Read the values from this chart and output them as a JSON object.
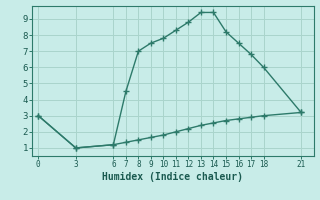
{
  "xlabel": "Humidex (Indice chaleur)",
  "bg_color": "#c8ece8",
  "line_color": "#2d7a6a",
  "grid_color": "#aad4cc",
  "upper_x": [
    0,
    3,
    6,
    7,
    8,
    9,
    10,
    11,
    12,
    13,
    14,
    15,
    16,
    17,
    18,
    21
  ],
  "upper_y": [
    3.0,
    1.0,
    1.2,
    4.5,
    7.0,
    7.5,
    7.8,
    8.3,
    8.8,
    9.4,
    9.4,
    8.2,
    7.5,
    6.8,
    6.0,
    3.2
  ],
  "lower_x": [
    0,
    3,
    6,
    7,
    8,
    9,
    10,
    11,
    12,
    13,
    14,
    15,
    16,
    17,
    18,
    21
  ],
  "lower_y": [
    3.0,
    1.0,
    1.2,
    1.35,
    1.5,
    1.65,
    1.8,
    2.0,
    2.2,
    2.4,
    2.55,
    2.7,
    2.8,
    2.9,
    3.0,
    3.2
  ],
  "xticks": [
    0,
    3,
    6,
    7,
    8,
    9,
    10,
    11,
    12,
    13,
    14,
    15,
    16,
    17,
    18,
    21
  ],
  "yticks": [
    1,
    2,
    3,
    4,
    5,
    6,
    7,
    8,
    9
  ],
  "xlim": [
    -0.5,
    22
  ],
  "ylim": [
    0.5,
    9.8
  ],
  "marker": "+"
}
